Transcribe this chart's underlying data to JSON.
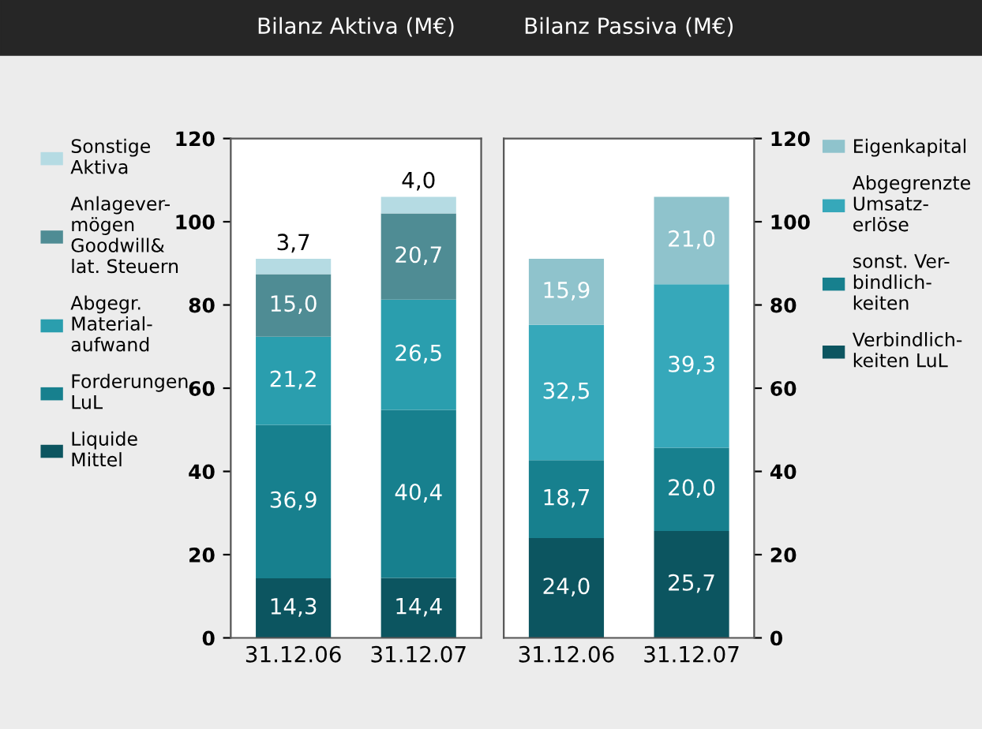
{
  "chart_data": [
    {
      "type": "bar",
      "title": "Bilanz Aktiva (M€)",
      "stacked": true,
      "categories": [
        "31.12.06",
        "31.12.07"
      ],
      "ylim": [
        0,
        120
      ],
      "yticks": [
        0,
        20,
        40,
        60,
        80,
        100,
        120
      ],
      "grid": false,
      "legend": "left",
      "series": [
        {
          "name": "Liquide\nMittel",
          "color": "#0c5560",
          "values": [
            14.3,
            14.4
          ],
          "value_labels": [
            "14,3",
            "14,4"
          ]
        },
        {
          "name": "Forderungen\nLuL",
          "color": "#17808e",
          "values": [
            36.9,
            40.4
          ],
          "value_labels": [
            "36,9",
            "40,4"
          ]
        },
        {
          "name": "Abgegr.\nMaterial-\naufwand",
          "color": "#2a9eae",
          "values": [
            21.2,
            26.5
          ],
          "value_labels": [
            "21,2",
            "26,5"
          ]
        },
        {
          "name": "Anlagever-\nmögen\nGoodwill&\nlat. Steuern",
          "color": "#4f8c94",
          "values": [
            15.0,
            20.7
          ],
          "value_labels": [
            "15,0",
            "20,7"
          ]
        },
        {
          "name": "Sonstige\nAktiva",
          "color": "#b5dbe3",
          "values": [
            3.7,
            4.0
          ],
          "value_labels": [
            "3,7",
            "4,0"
          ]
        }
      ]
    },
    {
      "type": "bar",
      "title": "Bilanz Passiva (M€)",
      "stacked": true,
      "categories": [
        "31.12.06",
        "31.12.07"
      ],
      "ylim": [
        0,
        120
      ],
      "yticks": [
        0,
        20,
        40,
        60,
        80,
        100,
        120
      ],
      "grid": false,
      "legend": "right",
      "series": [
        {
          "name": "Verbindlich-\nkeiten LuL",
          "color": "#0c5560",
          "values": [
            24.0,
            25.7
          ],
          "value_labels": [
            "24,0",
            "25,7"
          ]
        },
        {
          "name": "sonst. Ver-\nbindlich-\nkeiten",
          "color": "#17808e",
          "values": [
            18.7,
            20.0
          ],
          "value_labels": [
            "18,7",
            "20,0"
          ]
        },
        {
          "name": "Abgegrenzte\nUmsatz-\nerlöse",
          "color": "#36a8ba",
          "values": [
            32.5,
            39.3
          ],
          "value_labels": [
            "32,5",
            "39,3"
          ]
        },
        {
          "name": "Eigenkapital",
          "color": "#8fc3cc",
          "values": [
            15.9,
            21.0
          ],
          "value_labels": [
            "15,9",
            "21,0"
          ]
        }
      ]
    }
  ]
}
